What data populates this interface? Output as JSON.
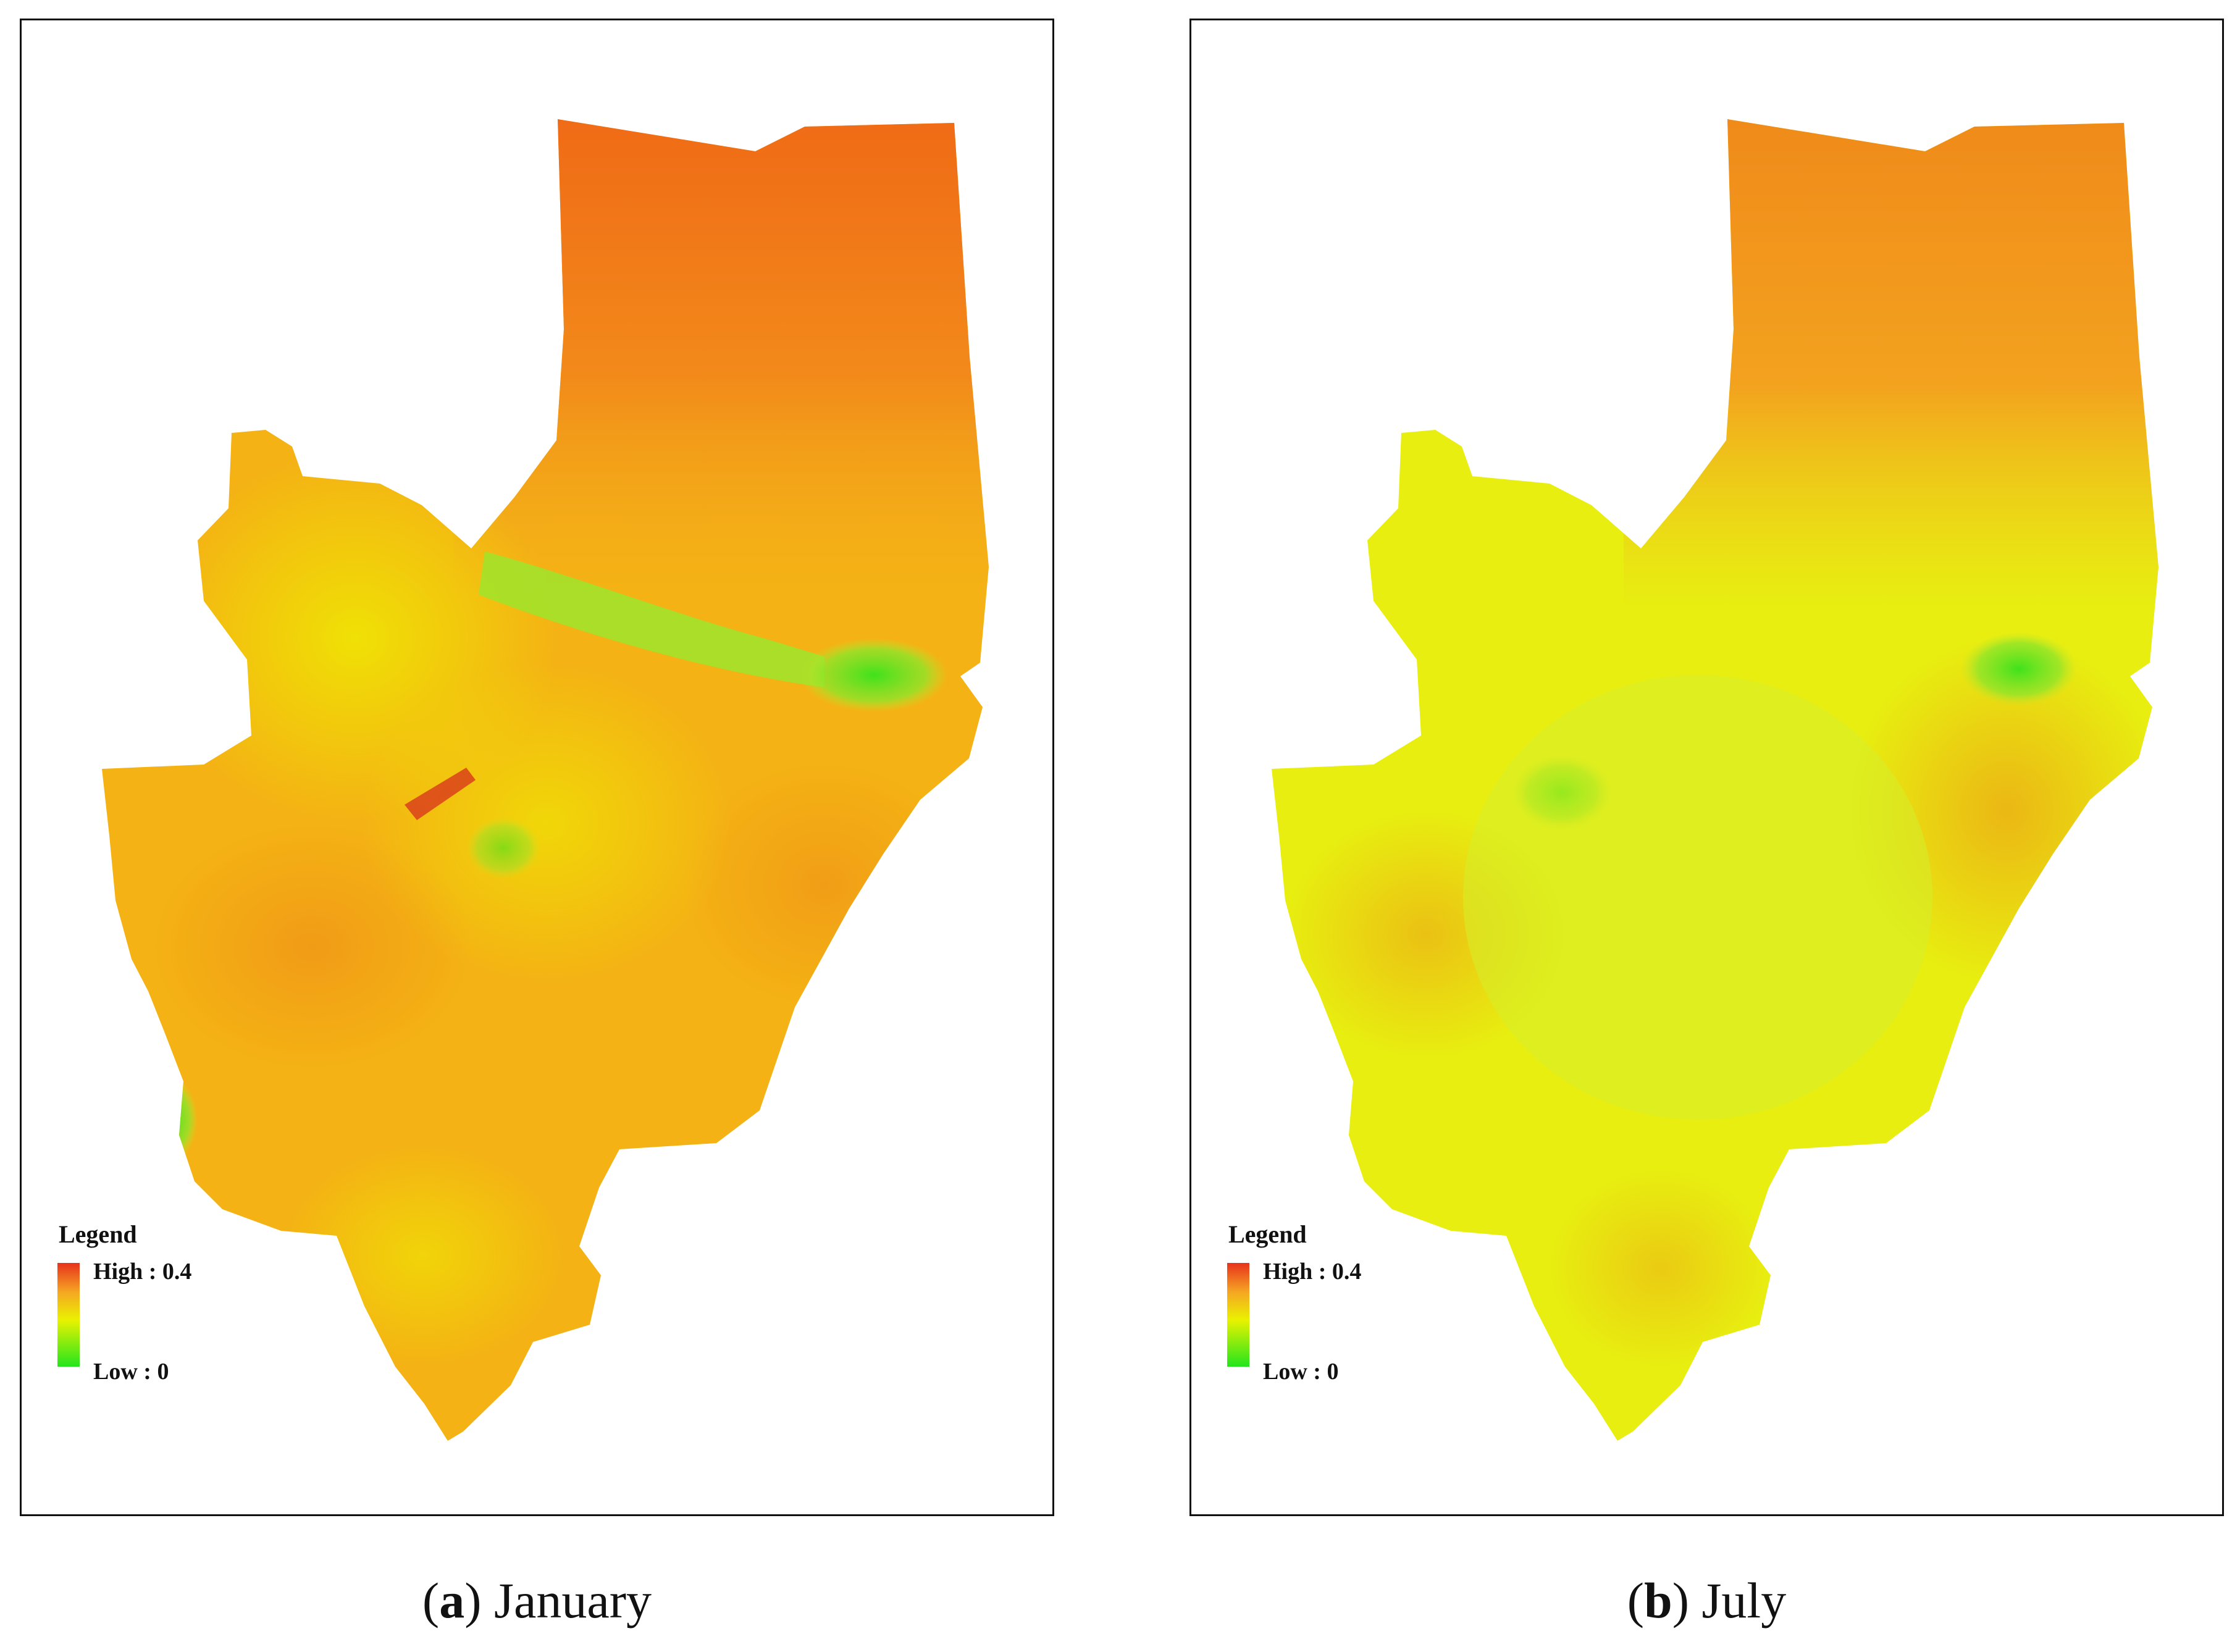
{
  "panels": [
    {
      "id": "a",
      "legend": {
        "title": "Legend",
        "high": "High : 0.4",
        "low": "Low : 0"
      },
      "caption": {
        "paren_open": "(",
        "letter": "a",
        "paren_close": ")",
        "month": "January"
      },
      "colors": {
        "base": "#f4b214",
        "north": "#f07818",
        "south": "#f2c21a",
        "green_band": "#9ee52c"
      }
    },
    {
      "id": "b",
      "legend": {
        "title": "Legend",
        "high": "High : 0.4",
        "low": "Low : 0"
      },
      "caption": {
        "paren_open": "(",
        "letter": "b",
        "paren_close": ")",
        "month": "July"
      },
      "colors": {
        "base": "#e8ee10",
        "north": "#f39a1e",
        "south": "#d9ee22",
        "green_band": "#bfe82a"
      }
    }
  ]
}
